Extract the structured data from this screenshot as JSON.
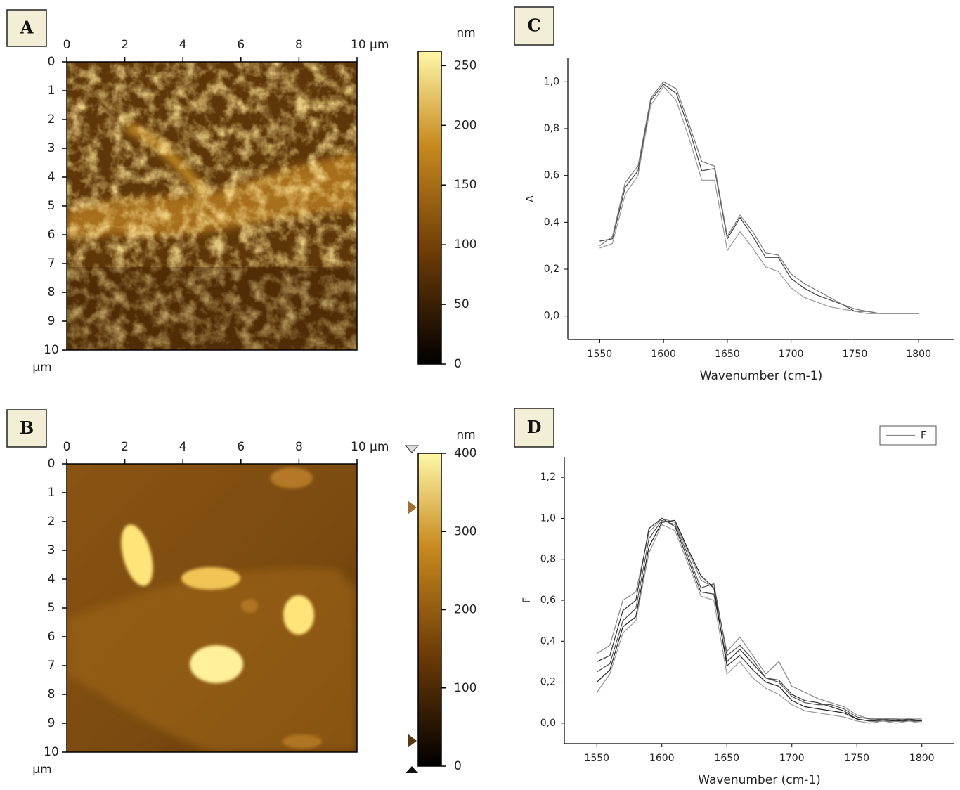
{
  "chart_data": [
    {
      "type": "image",
      "panel": "A",
      "xlim": [
        0,
        10
      ],
      "xticks": [
        0,
        2,
        4,
        6,
        8,
        {
          "value": 10,
          "label": "10 µm"
        }
      ],
      "ylim": [
        0,
        10
      ],
      "yticks": [
        0,
        1,
        2,
        3,
        4,
        5,
        6,
        7,
        8,
        9,
        10
      ],
      "y_label": "µm",
      "colorbar_label": "nm",
      "clim": [
        0,
        262
      ],
      "cticks": [
        0,
        50,
        100,
        150,
        200,
        250
      ]
    },
    {
      "type": "image",
      "panel": "B",
      "xlim": [
        0,
        10
      ],
      "xticks": [
        0,
        2,
        4,
        6,
        8,
        {
          "value": 10,
          "label": "10 µm"
        }
      ],
      "ylim": [
        0,
        10
      ],
      "yticks": [
        0,
        1,
        2,
        3,
        4,
        5,
        6,
        7,
        8,
        9,
        10
      ],
      "y_label": "µm",
      "colorbar_label": "nm",
      "clim": [
        0,
        400
      ],
      "cticks": [
        0,
        100,
        200,
        300,
        400
      ]
    },
    {
      "type": "line",
      "panel": "C",
      "x_label": "Wavenumber (cm-1)",
      "y_label": "A",
      "xlim": [
        1525,
        1828
      ],
      "xticks": [
        1550,
        1600,
        1650,
        1700,
        1750,
        1800
      ],
      "ylim": [
        -0.1,
        1.1
      ],
      "yticks": [
        {
          "value": 0,
          "label": "0,0"
        },
        {
          "value": 0.2,
          "label": "0,2"
        },
        {
          "value": 0.4,
          "label": "0,4"
        },
        {
          "value": 0.6,
          "label": "0,6"
        },
        {
          "value": 0.8,
          "label": "0,8"
        },
        {
          "value": 1.0,
          "label": "1,0"
        }
      ],
      "x": [
        1550,
        1560,
        1570,
        1580,
        1590,
        1600,
        1610,
        1620,
        1630,
        1640,
        1650,
        1660,
        1670,
        1680,
        1690,
        1700,
        1710,
        1720,
        1730,
        1740,
        1750,
        1760,
        1770,
        1780,
        1790,
        1800
      ],
      "series": [
        {
          "color": "#444444",
          "values": [
            0.32,
            0.33,
            0.55,
            0.62,
            0.92,
            0.99,
            0.95,
            0.8,
            0.62,
            0.63,
            0.33,
            0.42,
            0.34,
            0.25,
            0.25,
            0.16,
            0.12,
            0.09,
            0.07,
            0.05,
            0.02,
            0.02,
            0.01,
            0.01,
            0.01,
            0.01
          ]
        },
        {
          "color": "#777777",
          "values": [
            0.3,
            0.34,
            0.57,
            0.64,
            0.93,
            1.0,
            0.97,
            0.82,
            0.66,
            0.64,
            0.34,
            0.43,
            0.36,
            0.27,
            0.26,
            0.18,
            0.14,
            0.11,
            0.08,
            0.05,
            0.03,
            0.02,
            0.01,
            0.01,
            0.01,
            0.01
          ]
        },
        {
          "color": "#999999",
          "values": [
            0.29,
            0.31,
            0.52,
            0.6,
            0.9,
            0.98,
            0.92,
            0.76,
            0.58,
            0.58,
            0.28,
            0.36,
            0.29,
            0.21,
            0.19,
            0.12,
            0.08,
            0.06,
            0.04,
            0.03,
            0.02,
            0.01,
            0.01,
            0.01,
            0.01,
            0.01
          ]
        }
      ]
    },
    {
      "type": "line",
      "panel": "D",
      "x_label": "Wavenumber (cm-1)",
      "y_label": "F",
      "xlim": [
        1525,
        1825
      ],
      "xticks": [
        1550,
        1600,
        1650,
        1700,
        1750,
        1800
      ],
      "ylim": [
        -0.1,
        1.3
      ],
      "yticks": [
        {
          "value": 0,
          "label": "0,0"
        },
        {
          "value": 0.2,
          "label": "0,2"
        },
        {
          "value": 0.4,
          "label": "0,4"
        },
        {
          "value": 0.6,
          "label": "0,6"
        },
        {
          "value": 0.8,
          "label": "0,8"
        },
        {
          "value": 1.0,
          "label": "1,0"
        },
        {
          "value": 1.2,
          "label": "1,2"
        }
      ],
      "x": [
        1550,
        1560,
        1570,
        1580,
        1590,
        1600,
        1610,
        1620,
        1630,
        1640,
        1650,
        1660,
        1670,
        1680,
        1690,
        1700,
        1710,
        1720,
        1730,
        1740,
        1750,
        1760,
        1770,
        1780,
        1790,
        1800
      ],
      "series": [
        {
          "name": "F",
          "color": "#888888",
          "values": [
            0.34,
            0.38,
            0.6,
            0.64,
            0.93,
            1.0,
            0.98,
            0.84,
            0.7,
            0.66,
            0.35,
            0.42,
            0.33,
            0.24,
            0.3,
            0.18,
            0.15,
            0.12,
            0.1,
            0.08,
            0.04,
            0.02,
            0.02,
            0.02,
            0.02,
            0.02
          ]
        },
        {
          "color": "#333333",
          "values": [
            0.3,
            0.33,
            0.55,
            0.6,
            0.95,
            1.0,
            0.96,
            0.8,
            0.64,
            0.63,
            0.3,
            0.36,
            0.29,
            0.22,
            0.21,
            0.14,
            0.11,
            0.1,
            0.08,
            0.06,
            0.02,
            0.01,
            0.02,
            0.01,
            0.02,
            0.01
          ]
        },
        {
          "color": "#555555",
          "values": [
            0.25,
            0.29,
            0.5,
            0.56,
            0.9,
            0.99,
            0.97,
            0.82,
            0.66,
            0.68,
            0.33,
            0.38,
            0.31,
            0.22,
            0.2,
            0.13,
            0.1,
            0.09,
            0.09,
            0.07,
            0.03,
            0.02,
            0.02,
            0.02,
            0.01,
            0.01
          ]
        },
        {
          "color": "#222222",
          "values": [
            0.2,
            0.26,
            0.47,
            0.52,
            0.86,
            0.98,
            0.99,
            0.85,
            0.72,
            0.66,
            0.28,
            0.33,
            0.26,
            0.2,
            0.18,
            0.11,
            0.08,
            0.07,
            0.06,
            0.05,
            0.02,
            0.01,
            0.01,
            0.01,
            0.01,
            0.01
          ]
        },
        {
          "color": "#999999",
          "values": [
            0.15,
            0.24,
            0.44,
            0.5,
            0.83,
            0.97,
            0.94,
            0.78,
            0.62,
            0.6,
            0.24,
            0.3,
            0.22,
            0.17,
            0.14,
            0.09,
            0.06,
            0.05,
            0.04,
            0.03,
            0.01,
            0.0,
            0.01,
            0.0,
            0.01,
            0.0
          ]
        }
      ]
    }
  ]
}
